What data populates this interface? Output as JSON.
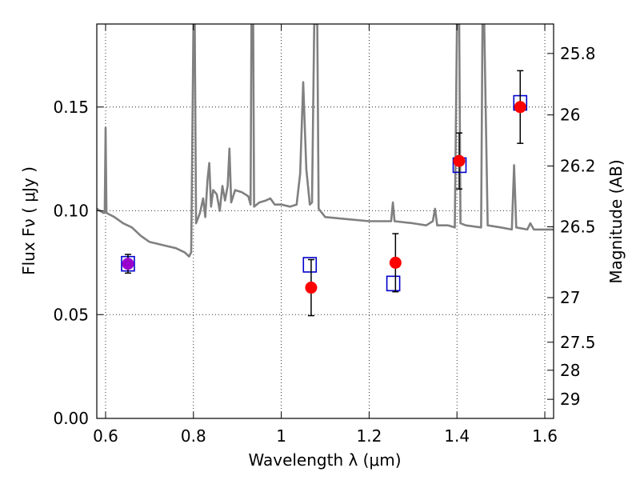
{
  "chart_data": {
    "type": "scatter",
    "xlabel": "Wavelength  λ (μm)",
    "ylabel": "Flux  Fν  ( μJy )",
    "y2label": "Magnitude (AB)",
    "xlim": [
      0.58,
      1.62
    ],
    "ylim": [
      0.0,
      0.19
    ],
    "grid": true,
    "x_ticks": [
      {
        "value": 0.6,
        "label": "0.6"
      },
      {
        "value": 0.8,
        "label": "0.8"
      },
      {
        "value": 1.0,
        "label": "1"
      },
      {
        "value": 1.2,
        "label": "1.2"
      },
      {
        "value": 1.4,
        "label": "1.4"
      },
      {
        "value": 1.6,
        "label": "1.6"
      }
    ],
    "y_ticks": [
      {
        "value": 0.0,
        "label": "0.00"
      },
      {
        "value": 0.05,
        "label": "0.05"
      },
      {
        "value": 0.1,
        "label": "0.10"
      },
      {
        "value": 0.15,
        "label": "0.15"
      }
    ],
    "y2_ticks": [
      {
        "flux": 0.1758,
        "label": "25.8"
      },
      {
        "flux": 0.1462,
        "label": "26"
      },
      {
        "flux": 0.1216,
        "label": "26.2"
      },
      {
        "flux": 0.0923,
        "label": "26.5"
      },
      {
        "flux": 0.0582,
        "label": "27"
      },
      {
        "flux": 0.0367,
        "label": "27.5"
      },
      {
        "flux": 0.0232,
        "label": "28"
      },
      {
        "flux": 0.0092,
        "label": "29"
      }
    ],
    "series": [
      {
        "kind": "line",
        "color": "#808080",
        "points": [
          [
            0.58,
            0.101
          ],
          [
            0.595,
            0.099
          ],
          [
            0.598,
            0.099
          ],
          [
            0.6,
            0.14
          ],
          [
            0.602,
            0.099
          ],
          [
            0.62,
            0.097
          ],
          [
            0.64,
            0.094
          ],
          [
            0.66,
            0.092
          ],
          [
            0.68,
            0.088
          ],
          [
            0.7,
            0.085
          ],
          [
            0.72,
            0.084
          ],
          [
            0.74,
            0.083
          ],
          [
            0.76,
            0.082
          ],
          [
            0.78,
            0.08
          ],
          [
            0.79,
            0.078
          ],
          [
            0.795,
            0.08
          ],
          [
            0.8,
            0.19
          ],
          [
            0.803,
            0.19
          ],
          [
            0.806,
            0.094
          ],
          [
            0.815,
            0.099
          ],
          [
            0.822,
            0.106
          ],
          [
            0.827,
            0.097
          ],
          [
            0.832,
            0.115
          ],
          [
            0.836,
            0.123
          ],
          [
            0.84,
            0.102
          ],
          [
            0.845,
            0.11
          ],
          [
            0.853,
            0.108
          ],
          [
            0.86,
            0.1
          ],
          [
            0.866,
            0.112
          ],
          [
            0.872,
            0.105
          ],
          [
            0.878,
            0.112
          ],
          [
            0.882,
            0.13
          ],
          [
            0.886,
            0.104
          ],
          [
            0.895,
            0.11
          ],
          [
            0.91,
            0.109
          ],
          [
            0.925,
            0.107
          ],
          [
            0.93,
            0.103
          ],
          [
            0.932,
            0.19
          ],
          [
            0.936,
            0.19
          ],
          [
            0.938,
            0.102
          ],
          [
            0.95,
            0.104
          ],
          [
            0.965,
            0.105
          ],
          [
            0.975,
            0.106
          ],
          [
            0.985,
            0.103
          ],
          [
            1.0,
            0.103
          ],
          [
            1.02,
            0.102
          ],
          [
            1.035,
            0.103
          ],
          [
            1.043,
            0.118
          ],
          [
            1.05,
            0.162
          ],
          [
            1.057,
            0.12
          ],
          [
            1.065,
            0.103
          ],
          [
            1.07,
            0.104
          ],
          [
            1.075,
            0.19
          ],
          [
            1.082,
            0.19
          ],
          [
            1.085,
            0.101
          ],
          [
            1.1,
            0.097
          ],
          [
            1.15,
            0.096
          ],
          [
            1.2,
            0.095
          ],
          [
            1.25,
            0.095
          ],
          [
            1.254,
            0.104
          ],
          [
            1.258,
            0.095
          ],
          [
            1.3,
            0.094
          ],
          [
            1.33,
            0.093
          ],
          [
            1.345,
            0.095
          ],
          [
            1.35,
            0.101
          ],
          [
            1.355,
            0.093
          ],
          [
            1.38,
            0.093
          ],
          [
            1.395,
            0.092
          ],
          [
            1.4,
            0.19
          ],
          [
            1.405,
            0.19
          ],
          [
            1.408,
            0.094
          ],
          [
            1.42,
            0.093
          ],
          [
            1.455,
            0.092
          ],
          [
            1.458,
            0.19
          ],
          [
            1.462,
            0.19
          ],
          [
            1.47,
            0.093
          ],
          [
            1.5,
            0.092
          ],
          [
            1.525,
            0.091
          ],
          [
            1.53,
            0.122
          ],
          [
            1.535,
            0.092
          ],
          [
            1.56,
            0.091
          ],
          [
            1.567,
            0.094
          ],
          [
            1.575,
            0.091
          ],
          [
            1.6,
            0.091
          ],
          [
            1.62,
            0.091
          ]
        ]
      },
      {
        "kind": "squares",
        "color": "#0000cc",
        "points": [
          [
            0.651,
            0.0745
          ],
          [
            1.065,
            0.074
          ],
          [
            1.255,
            0.065
          ],
          [
            1.406,
            0.122
          ],
          [
            1.544,
            0.152
          ]
        ]
      },
      {
        "kind": "points_with_errors",
        "color": "#ff0000",
        "points": [
          {
            "x": 0.651,
            "y": 0.0745,
            "err": 0.0045,
            "color": "#9900cc"
          },
          {
            "x": 1.068,
            "y": 0.063,
            "err": 0.0135
          },
          {
            "x": 1.26,
            "y": 0.075,
            "err": 0.014
          },
          {
            "x": 1.405,
            "y": 0.124,
            "err": 0.0135
          },
          {
            "x": 1.544,
            "y": 0.15,
            "err": 0.0175
          }
        ]
      }
    ]
  }
}
